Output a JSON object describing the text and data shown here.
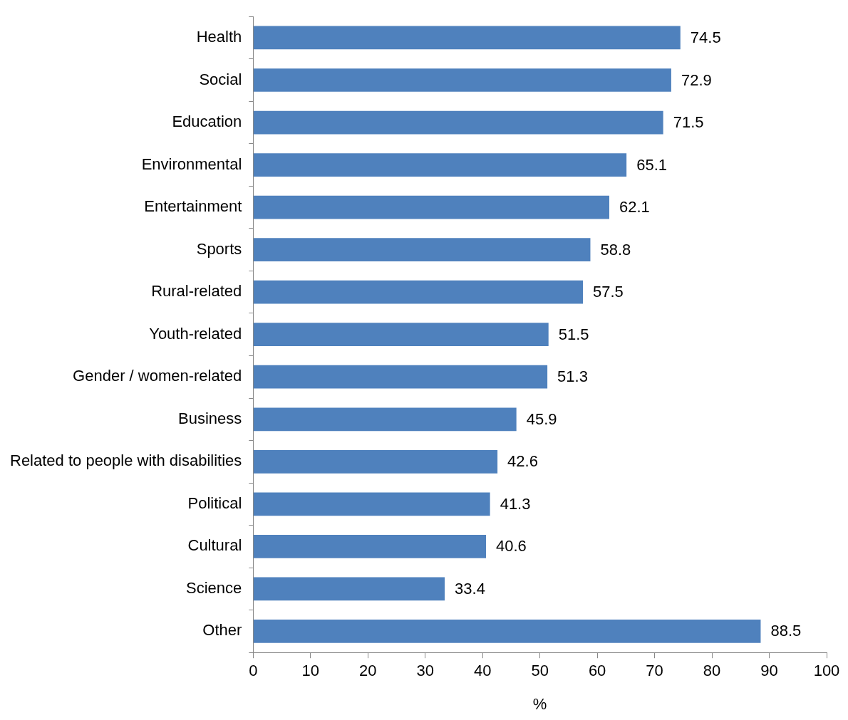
{
  "chart_data": {
    "type": "bar",
    "orientation": "horizontal",
    "xlabel": "%",
    "categories": [
      "Health",
      "Social",
      "Education",
      "Environmental",
      "Entertainment",
      "Sports",
      "Rural-related",
      "Youth-related",
      "Gender / women-related",
      "Business",
      "Related to people with disabilities",
      "Political",
      "Cultural",
      "Science",
      "Other"
    ],
    "values": [
      74.5,
      72.9,
      71.5,
      65.1,
      62.1,
      58.8,
      57.5,
      51.5,
      51.3,
      45.9,
      42.6,
      41.3,
      40.6,
      33.4,
      88.5
    ],
    "color": "#4f81bd",
    "xlim": [
      0,
      100
    ],
    "xticks": [
      0,
      10,
      20,
      30,
      40,
      50,
      60,
      70,
      80,
      90,
      100
    ],
    "grid": false,
    "legend": false,
    "data_labels": true
  }
}
